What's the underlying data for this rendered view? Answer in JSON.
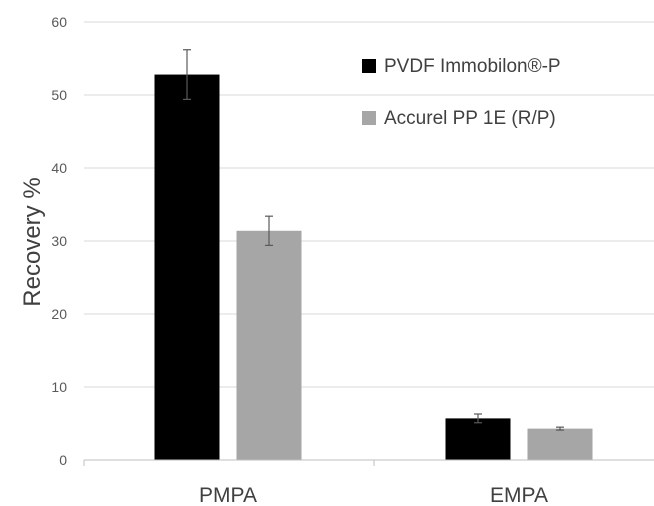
{
  "chart_data": {
    "type": "bar",
    "title": "",
    "xlabel": "",
    "ylabel": "Recovery %",
    "categories": [
      "PMPA",
      "EMPA"
    ],
    "series": [
      {
        "name": "PVDF Immobilon®-P",
        "color": "#000000",
        "values": [
          52.8,
          5.7
        ],
        "errors": [
          3.4,
          0.6
        ]
      },
      {
        "name": "Accurel PP 1E (R/P)",
        "color": "#a6a6a6",
        "values": [
          31.4,
          4.3
        ],
        "errors": [
          2.0,
          0.2
        ]
      }
    ],
    "ylim": [
      0,
      60
    ],
    "yticks": [
      0,
      10,
      20,
      30,
      40,
      50,
      60
    ],
    "grid": true,
    "legend_position": "top-right"
  }
}
